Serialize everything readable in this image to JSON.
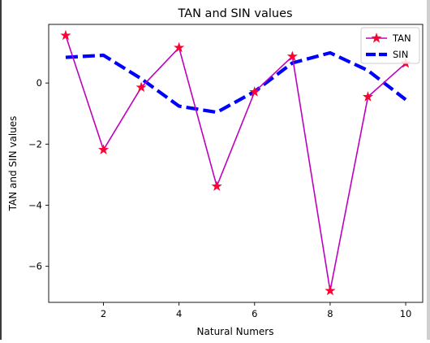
{
  "chart_data": {
    "type": "line",
    "title": "TAN and SIN values",
    "xlabel": "Natural Numers",
    "ylabel": "TAN and SIN values",
    "x": [
      1,
      2,
      3,
      4,
      5,
      6,
      7,
      8,
      9,
      10
    ],
    "xlim": [
      0.55,
      10.45
    ],
    "ylim": [
      -7.18,
      1.92
    ],
    "xticks": [
      2,
      4,
      6,
      8,
      10
    ],
    "xtick_labels": [
      "2",
      "4",
      "6",
      "8",
      "10"
    ],
    "yticks": [
      0,
      -2,
      -4,
      -6
    ],
    "ytick_labels": [
      "0",
      "−2",
      "−4",
      "−6"
    ],
    "grid": false,
    "legend_position": "top-right",
    "series": [
      {
        "name": "TAN",
        "values": [
          1.557,
          -2.185,
          -0.143,
          1.158,
          -3.381,
          -0.291,
          0.871,
          -6.8,
          -0.452,
          0.648
        ],
        "color": "#bf00bf",
        "marker": "star",
        "marker_color": "#ff0033",
        "line_style": "solid"
      },
      {
        "name": "SIN",
        "values": [
          0.841,
          0.909,
          0.141,
          -0.757,
          -0.959,
          -0.279,
          0.657,
          0.989,
          0.412,
          -0.544
        ],
        "color": "#0000ff",
        "marker": "none",
        "line_style": "dashed"
      }
    ]
  }
}
